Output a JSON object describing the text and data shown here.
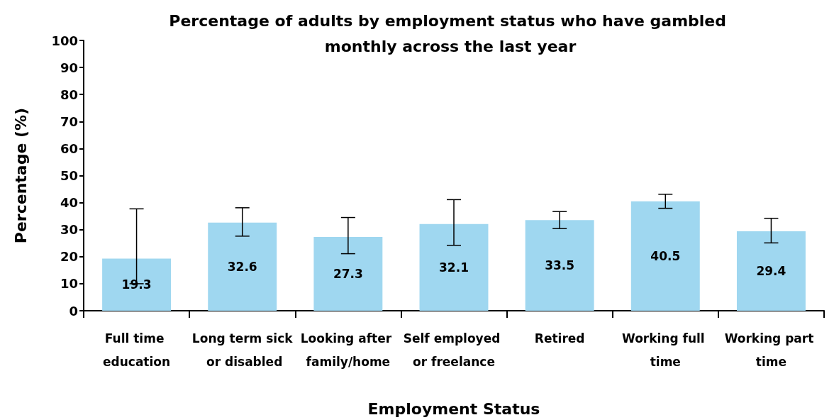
{
  "chart_data": {
    "type": "bar",
    "title": "Percentage of adults by employment status who have gambled monthly across the last year",
    "xlabel": "Employment Status",
    "ylabel": "Percentage (%)",
    "categories": [
      "Full time education",
      "Long term sick or disabled",
      "Looking after family/home",
      "Self employed or freelance",
      "Retired",
      "Working full time",
      "Working part time"
    ],
    "values": [
      19.3,
      32.6,
      27.3,
      32.1,
      33.5,
      40.5,
      29.4
    ],
    "errors": [
      [
        10,
        37.7
      ],
      [
        27.6,
        38.1
      ],
      [
        21.1,
        34.5
      ],
      [
        24.2,
        41.1
      ],
      [
        30.4,
        36.7
      ],
      [
        37.9,
        43.1
      ],
      [
        25.1,
        34.2
      ]
    ],
    "color": "#9fd7f0",
    "data_labels": true,
    "grid": false,
    "ylim": [
      0,
      100
    ],
    "yticks": [
      0,
      10,
      20,
      30,
      40,
      50,
      60,
      70,
      80,
      90,
      100
    ]
  }
}
